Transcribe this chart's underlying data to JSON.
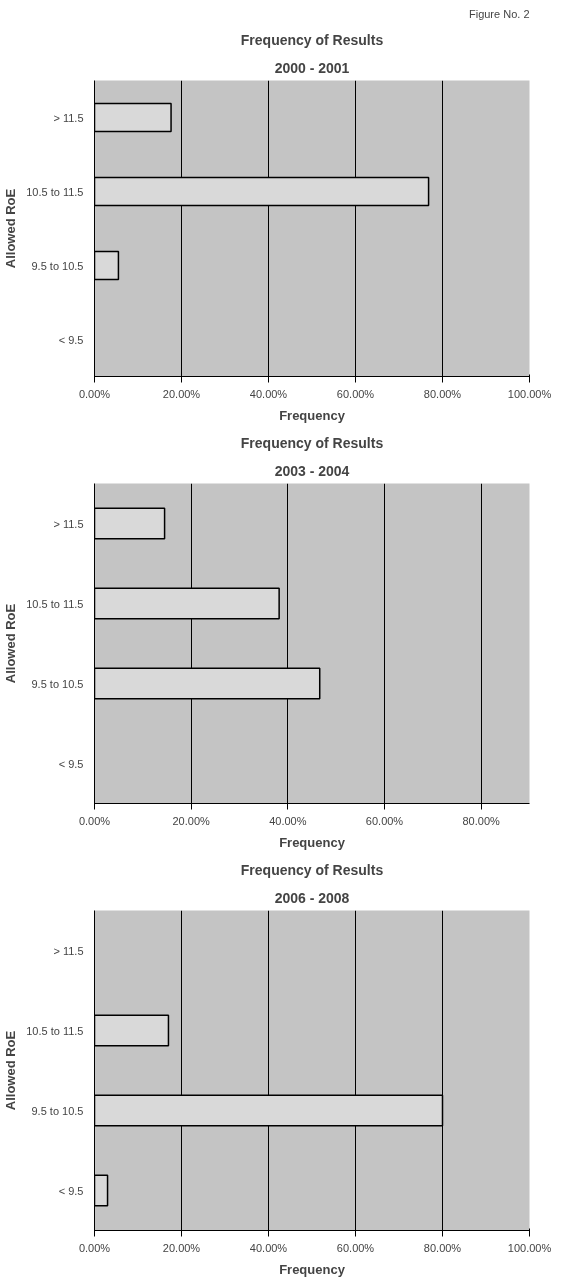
{
  "chart_data": [
    {
      "type": "bar",
      "orientation": "horizontal",
      "title": "Frequency of Results",
      "subtitle": "2000 - 2001",
      "xlabel": "Frequency",
      "ylabel": "Allowed RoE",
      "annotations": [
        "Figure No. 2"
      ],
      "categories": [
        "> 11.5",
        "10.5 to 11.5",
        "9.5 to 10.5",
        "< 9.5"
      ],
      "values": [
        17.6,
        76.8,
        5.5,
        0
      ],
      "color": "#d9d9d9",
      "xlim": [
        0,
        100
      ],
      "xticks": [
        {
          "value": 0,
          "label": "0.00%"
        },
        {
          "value": 20,
          "label": "20.00%"
        },
        {
          "value": 40,
          "label": "40.00%"
        },
        {
          "value": 60,
          "label": "60.00%"
        },
        {
          "value": 80,
          "label": "80.00%"
        },
        {
          "value": 100,
          "label": "100.00%"
        }
      ],
      "grid": "x"
    },
    {
      "type": "bar",
      "orientation": "horizontal",
      "title": "Frequency of Results",
      "subtitle": "2003 - 2004",
      "xlabel": "Frequency",
      "ylabel": "Allowed RoE",
      "categories": [
        "> 11.5",
        "10.5 to 11.5",
        "9.5 to 10.5",
        "< 9.5"
      ],
      "values": [
        14.5,
        38.2,
        46.6,
        0
      ],
      "color": "#d9d9d9",
      "xlim": [
        0,
        90
      ],
      "xticks": [
        {
          "value": 0,
          "label": "0.00%"
        },
        {
          "value": 20,
          "label": "20.00%"
        },
        {
          "value": 40,
          "label": "40.00%"
        },
        {
          "value": 60,
          "label": "60.00%"
        },
        {
          "value": 80,
          "label": "80.00%"
        }
      ],
      "grid": "x"
    },
    {
      "type": "bar",
      "orientation": "horizontal",
      "title": "Frequency of Results",
      "subtitle": "2006 - 2008",
      "xlabel": "Frequency",
      "ylabel": "Allowed RoE",
      "categories": [
        "> 11.5",
        "10.5 to 11.5",
        "9.5 to 10.5",
        "< 9.5"
      ],
      "values": [
        0,
        17.0,
        80.0,
        3.0
      ],
      "color": "#d9d9d9",
      "xlim": [
        0,
        100
      ],
      "xticks": [
        {
          "value": 0,
          "label": "0.00%"
        },
        {
          "value": 20,
          "label": "20.00%"
        },
        {
          "value": 40,
          "label": "40.00%"
        },
        {
          "value": 60,
          "label": "60.00%"
        },
        {
          "value": 80,
          "label": "80.00%"
        },
        {
          "value": 100,
          "label": "100.00%"
        }
      ],
      "grid": "x"
    }
  ]
}
